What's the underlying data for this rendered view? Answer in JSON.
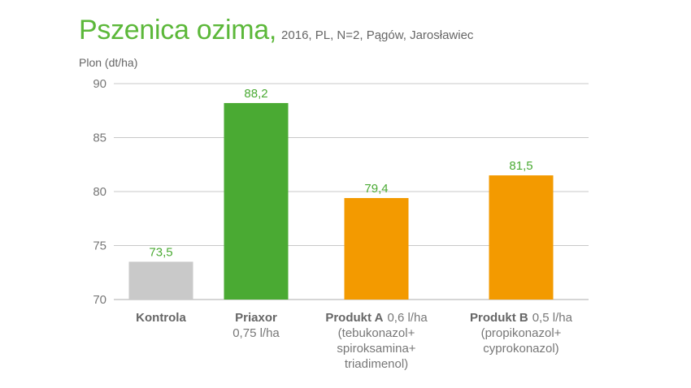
{
  "chart_data": {
    "type": "bar",
    "title": "Pszenica ozima,",
    "subtitle": "2016, PL, N=2, Pągów, Jarosławiec",
    "ylabel": "Plon (dt/ha)",
    "ylim": [
      70,
      90
    ],
    "yticks": [
      "70",
      "75",
      "80",
      "85",
      "90"
    ],
    "grid": true,
    "categories": [
      {
        "name": "Kontrola",
        "dose": "",
        "detail": [],
        "label_color": "#666666"
      },
      {
        "name": "Priaxor",
        "dose": "0,75 l/ha",
        "detail": [],
        "label_color": "#4aaa33",
        "dose_newline": true
      },
      {
        "name": "Produkt A",
        "dose": "0,6 l/ha",
        "detail": [
          "(tebukonazol+",
          "spiroksamina+",
          "triadimenol)"
        ],
        "label_color": "#666666"
      },
      {
        "name": "Produkt B",
        "dose": "0,5 l/ha",
        "detail": [
          "(propikonazol+",
          "cyprokonazol)"
        ],
        "label_color": "#666666"
      }
    ],
    "values": [
      73.5,
      88.2,
      79.4,
      81.5
    ],
    "value_labels": [
      "73,5",
      "88,2",
      "79,4",
      "81,5"
    ],
    "colors": [
      "#c9c9c9",
      "#4aaa33",
      "#f39a00",
      "#f39a00"
    ],
    "value_label_color": "#4aaa33",
    "grid_color": "#c8c8c8"
  }
}
